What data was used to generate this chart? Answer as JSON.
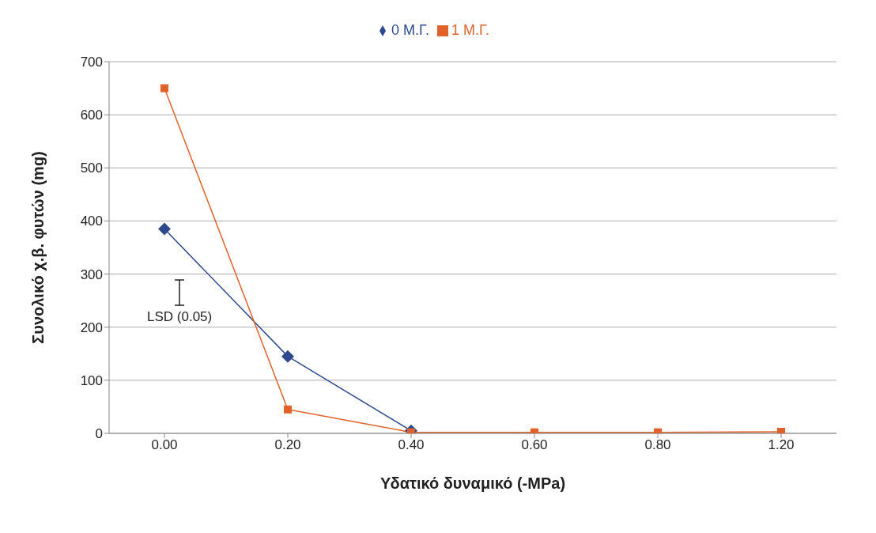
{
  "chart_data": {
    "type": "line",
    "categories": [
      "0.00",
      "0.20",
      "0.40",
      "0.60",
      "0.80",
      "1.20"
    ],
    "series": [
      {
        "name": "0 Μ.Γ.",
        "color": "#2e4a8c",
        "marker": "diamond",
        "values": [
          385,
          145,
          5,
          null,
          null,
          null
        ]
      },
      {
        "name": "1 Μ.Γ.",
        "color": "#e0622a",
        "marker": "square",
        "values": [
          650,
          45,
          2,
          2,
          2,
          3
        ]
      }
    ],
    "xlabel": "Υδατικό δυναμικό (-MPa)",
    "ylabel": "Συνολικό χ.β. φυτών (mg)",
    "ylim": [
      0,
      700
    ],
    "yticks": [
      0,
      100,
      200,
      300,
      400,
      500,
      600,
      700
    ],
    "grid": "y",
    "legend": "top",
    "annotations": [
      "LSD (0.05)"
    ]
  }
}
